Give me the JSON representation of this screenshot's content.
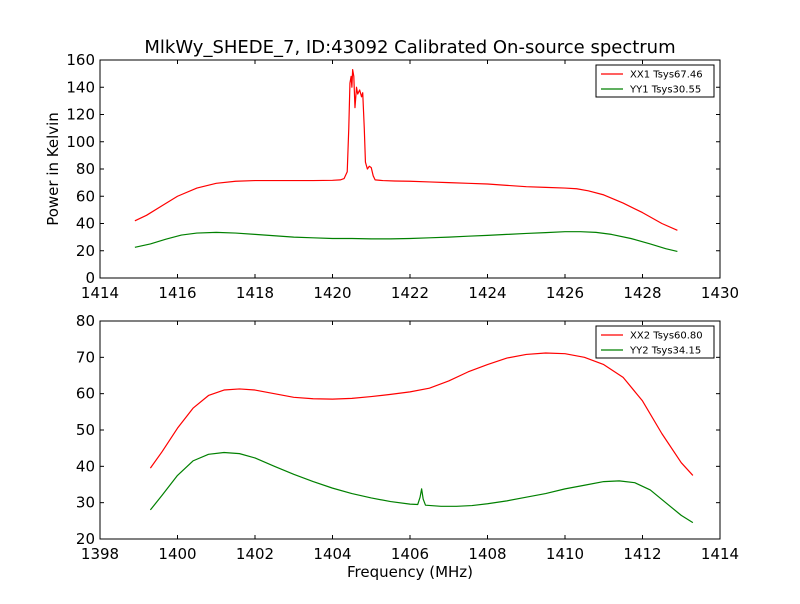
{
  "chart_data": [
    {
      "type": "line",
      "title": "MlkWy_SHEDE_7, ID:43092 Calibrated On-source spectrum",
      "xlabel": "",
      "ylabel": "Power in Kelvin",
      "xlim": [
        1414,
        1430
      ],
      "ylim": [
        0,
        160
      ],
      "xticks": [
        1414,
        1416,
        1418,
        1420,
        1422,
        1424,
        1426,
        1428,
        1430
      ],
      "yticks": [
        0,
        20,
        40,
        60,
        80,
        100,
        120,
        140,
        160
      ],
      "grid": false,
      "legend_position": "top-right",
      "series": [
        {
          "name": "XX1 Tsys67.46",
          "color": "#ff0000",
          "points": [
            [
              1414.9,
              42
            ],
            [
              1415.2,
              46
            ],
            [
              1415.6,
              53
            ],
            [
              1416.0,
              60
            ],
            [
              1416.5,
              66
            ],
            [
              1417.0,
              69.5
            ],
            [
              1417.5,
              71
            ],
            [
              1418.0,
              71.5
            ],
            [
              1418.5,
              71.5
            ],
            [
              1419.0,
              71.5
            ],
            [
              1419.5,
              71.5
            ],
            [
              1420.0,
              71.7
            ],
            [
              1420.2,
              72
            ],
            [
              1420.3,
              73
            ],
            [
              1420.38,
              78
            ],
            [
              1420.42,
              110
            ],
            [
              1420.45,
              143
            ],
            [
              1420.48,
              148
            ],
            [
              1420.5,
              140
            ],
            [
              1420.52,
              153
            ],
            [
              1420.55,
              148
            ],
            [
              1420.58,
              125
            ],
            [
              1420.62,
              140
            ],
            [
              1420.65,
              135
            ],
            [
              1420.7,
              138
            ],
            [
              1420.75,
              133
            ],
            [
              1420.78,
              136
            ],
            [
              1420.82,
              110
            ],
            [
              1420.85,
              85
            ],
            [
              1420.9,
              80
            ],
            [
              1420.95,
              82
            ],
            [
              1421.0,
              81
            ],
            [
              1421.05,
              75
            ],
            [
              1421.1,
              72
            ],
            [
              1421.3,
              71.5
            ],
            [
              1421.6,
              71.2
            ],
            [
              1422.0,
              71
            ],
            [
              1422.5,
              70.5
            ],
            [
              1423.0,
              70
            ],
            [
              1423.5,
              69.5
            ],
            [
              1424.0,
              69
            ],
            [
              1424.5,
              68
            ],
            [
              1425.0,
              67
            ],
            [
              1425.5,
              66.5
            ],
            [
              1426.0,
              66
            ],
            [
              1426.3,
              65.5
            ],
            [
              1426.6,
              64
            ],
            [
              1427.0,
              61
            ],
            [
              1427.5,
              55
            ],
            [
              1428.0,
              48
            ],
            [
              1428.5,
              40
            ],
            [
              1428.9,
              35
            ]
          ]
        },
        {
          "name": "YY1 Tsys30.55",
          "color": "#008000",
          "points": [
            [
              1414.9,
              22.5
            ],
            [
              1415.3,
              25
            ],
            [
              1415.7,
              28.5
            ],
            [
              1416.1,
              31.5
            ],
            [
              1416.5,
              33
            ],
            [
              1417.0,
              33.5
            ],
            [
              1417.5,
              33
            ],
            [
              1418.0,
              32
            ],
            [
              1418.5,
              31
            ],
            [
              1419.0,
              30
            ],
            [
              1419.5,
              29.5
            ],
            [
              1420.0,
              29
            ],
            [
              1420.5,
              29
            ],
            [
              1421.0,
              28.7
            ],
            [
              1421.5,
              28.7
            ],
            [
              1422.0,
              29
            ],
            [
              1422.5,
              29.5
            ],
            [
              1423.0,
              30
            ],
            [
              1423.5,
              30.7
            ],
            [
              1424.0,
              31.3
            ],
            [
              1424.5,
              32
            ],
            [
              1425.0,
              32.7
            ],
            [
              1425.5,
              33.3
            ],
            [
              1426.0,
              34
            ],
            [
              1426.4,
              34
            ],
            [
              1426.8,
              33.5
            ],
            [
              1427.2,
              32
            ],
            [
              1427.7,
              29
            ],
            [
              1428.2,
              25
            ],
            [
              1428.6,
              21.5
            ],
            [
              1428.9,
              19.5
            ]
          ]
        }
      ]
    },
    {
      "type": "line",
      "title": "",
      "xlabel": "Frequency (MHz)",
      "ylabel": "",
      "xlim": [
        1398,
        1414
      ],
      "ylim": [
        20,
        80
      ],
      "xticks": [
        1398,
        1400,
        1402,
        1404,
        1406,
        1408,
        1410,
        1412,
        1414
      ],
      "yticks": [
        20,
        30,
        40,
        50,
        60,
        70,
        80
      ],
      "grid": false,
      "legend_position": "top-right",
      "series": [
        {
          "name": "XX2 Tsys60.80",
          "color": "#ff0000",
          "points": [
            [
              1399.3,
              39.5
            ],
            [
              1399.6,
              44
            ],
            [
              1400.0,
              50.5
            ],
            [
              1400.4,
              56
            ],
            [
              1400.8,
              59.5
            ],
            [
              1401.2,
              61
            ],
            [
              1401.6,
              61.3
            ],
            [
              1402.0,
              61
            ],
            [
              1402.5,
              60
            ],
            [
              1403.0,
              59
            ],
            [
              1403.5,
              58.6
            ],
            [
              1404.0,
              58.5
            ],
            [
              1404.5,
              58.7
            ],
            [
              1405.0,
              59.2
            ],
            [
              1405.5,
              59.8
            ],
            [
              1406.0,
              60.5
            ],
            [
              1406.5,
              61.5
            ],
            [
              1407.0,
              63.5
            ],
            [
              1407.5,
              66
            ],
            [
              1408.0,
              68
            ],
            [
              1408.5,
              69.8
            ],
            [
              1409.0,
              70.8
            ],
            [
              1409.5,
              71.2
            ],
            [
              1410.0,
              71
            ],
            [
              1410.5,
              70
            ],
            [
              1411.0,
              68
            ],
            [
              1411.5,
              64.5
            ],
            [
              1412.0,
              58
            ],
            [
              1412.5,
              49
            ],
            [
              1413.0,
              41
            ],
            [
              1413.3,
              37.5
            ]
          ]
        },
        {
          "name": "YY2 Tsys34.15",
          "color": "#008000",
          "points": [
            [
              1399.3,
              28
            ],
            [
              1399.6,
              32
            ],
            [
              1400.0,
              37.5
            ],
            [
              1400.4,
              41.5
            ],
            [
              1400.8,
              43.3
            ],
            [
              1401.2,
              43.8
            ],
            [
              1401.6,
              43.5
            ],
            [
              1402.0,
              42.3
            ],
            [
              1402.5,
              40
            ],
            [
              1403.0,
              37.8
            ],
            [
              1403.5,
              35.8
            ],
            [
              1404.0,
              34
            ],
            [
              1404.5,
              32.5
            ],
            [
              1405.0,
              31.3
            ],
            [
              1405.5,
              30.3
            ],
            [
              1406.0,
              29.6
            ],
            [
              1406.2,
              29.5
            ],
            [
              1406.26,
              31.5
            ],
            [
              1406.3,
              33.8
            ],
            [
              1406.34,
              31
            ],
            [
              1406.4,
              29.3
            ],
            [
              1406.8,
              29
            ],
            [
              1407.2,
              29
            ],
            [
              1407.6,
              29.2
            ],
            [
              1408.0,
              29.7
            ],
            [
              1408.5,
              30.5
            ],
            [
              1409.0,
              31.5
            ],
            [
              1409.5,
              32.5
            ],
            [
              1410.0,
              33.8
            ],
            [
              1410.5,
              34.8
            ],
            [
              1411.0,
              35.8
            ],
            [
              1411.4,
              36
            ],
            [
              1411.8,
              35.5
            ],
            [
              1412.2,
              33.5
            ],
            [
              1412.6,
              30
            ],
            [
              1413.0,
              26.5
            ],
            [
              1413.3,
              24.5
            ]
          ]
        }
      ]
    }
  ]
}
